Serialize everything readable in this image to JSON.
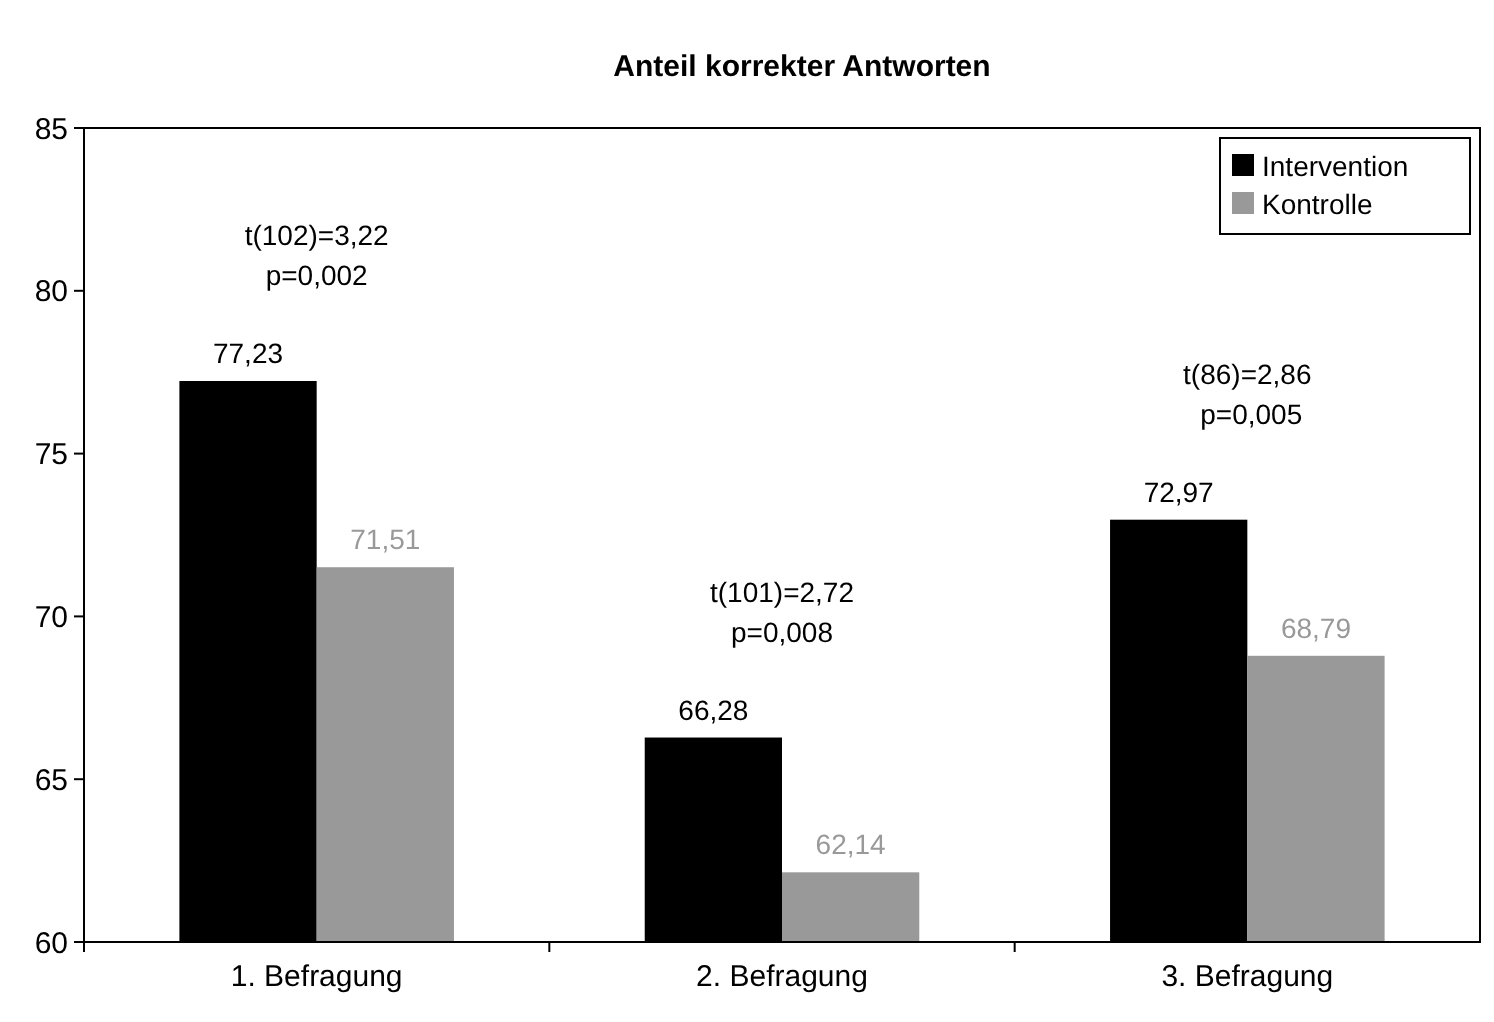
{
  "chart_data": {
    "type": "bar",
    "title": "Anteil korrekter Antworten",
    "categories": [
      "1. Befragung",
      "2. Befragung",
      "3. Befragung"
    ],
    "series": [
      {
        "name": "Intervention",
        "color": "#000000",
        "values": [
          77.23,
          66.28,
          72.97
        ],
        "value_labels": [
          "77,23",
          "66,28",
          "72,97"
        ]
      },
      {
        "name": "Kontrolle",
        "color": "#999999",
        "values": [
          71.51,
          62.14,
          68.79
        ],
        "value_labels": [
          "71,51",
          "62,14",
          "68,79"
        ]
      }
    ],
    "ylim": [
      60,
      85
    ],
    "yticks": [
      60,
      65,
      70,
      75,
      80,
      85
    ],
    "grid": false,
    "legend": "top right",
    "annotations": [
      "t(102)=3,22\np=0,002",
      "t(101)=2,72\np=0,008",
      "t(86)=2,86\n p=0,005"
    ]
  }
}
